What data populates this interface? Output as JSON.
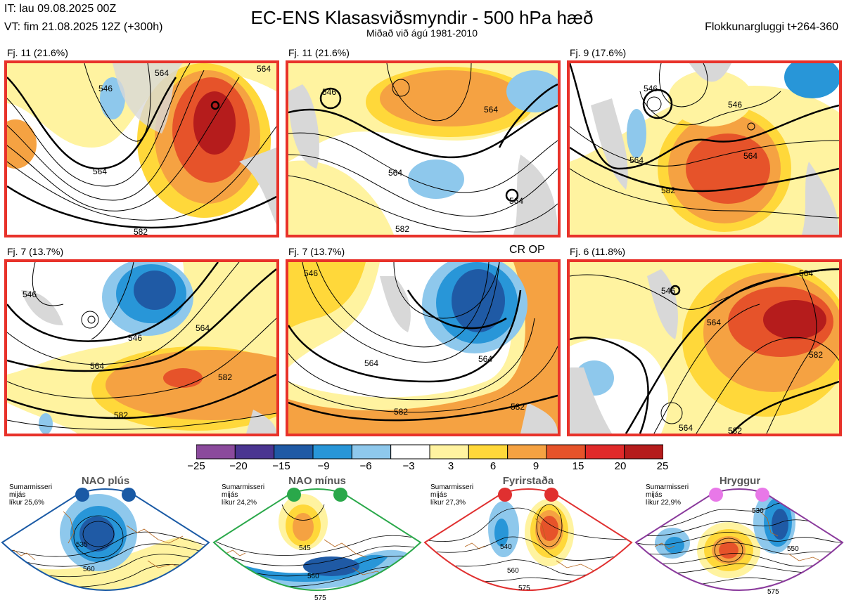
{
  "header": {
    "it": "IT: lau 09.08.2025 00Z",
    "vt": "VT: fim 21.08.2025 12Z  (+300h)",
    "title": "EC-ENS Klasasviðsmyndir - 500 hPa hæð",
    "subtitle": "Miðað við ágú 1981-2010",
    "window": "Flokkunargluggi t+264-360"
  },
  "panels": [
    {
      "label": "Fj. 11 (21.6%)",
      "contours": [
        "546",
        "564",
        "564",
        "564",
        "582"
      ],
      "anomaly": "warm-ridge-east"
    },
    {
      "label": "Fj. 11 (21.6%)",
      "contours": [
        "546",
        "564",
        "564",
        "564",
        "582"
      ],
      "anomaly": "warm-north-cold-south"
    },
    {
      "label": "Fj. 9 (17.6%)",
      "contours": [
        "546",
        "546",
        "564",
        "564",
        "582"
      ],
      "anomaly": "warm-center"
    },
    {
      "label": "Fj. 7 (13.7%)",
      "contours": [
        "546",
        "546",
        "564",
        "564",
        "582",
        "582"
      ],
      "anomaly": "cold-northwest"
    },
    {
      "label": "Fj. 7 (13.7%)",
      "contours": [
        "546",
        "564",
        "564",
        "582",
        "582"
      ],
      "anomaly": "cold-center-north"
    },
    {
      "label": "Fj. 6 (11.8%)",
      "contours": [
        "546",
        "564",
        "564",
        "564",
        "582",
        "582"
      ],
      "anomaly": "warm-east"
    }
  ],
  "operational_marker": "CR OP",
  "colorbar": {
    "ticks": [
      "−25",
      "−20",
      "−15",
      "−9",
      "−6",
      "−3",
      "3",
      "6",
      "9",
      "15",
      "20",
      "25"
    ],
    "colors": [
      "#8b4a9c",
      "#4a3591",
      "#1f5aa5",
      "#2896d8",
      "#8ec8ec",
      "#ffffff",
      "#fff3a0",
      "#ffd83a",
      "#f5a242",
      "#e6532a",
      "#e02a2a",
      "#b51c1c"
    ]
  },
  "regimes": [
    {
      "title": "NAO plús",
      "season": "Sumarmisseri",
      "avg": "mijás",
      "prob": "líkur 25,6%",
      "border": "#1a5aa5",
      "dot": "#1a5aa5",
      "contours": [
        "535",
        "560"
      ]
    },
    {
      "title": "NAO mínus",
      "season": "Sumarmisseri",
      "avg": "mijás",
      "prob": "líkur 24,2%",
      "border": "#2aa84a",
      "dot": "#2aa84a",
      "contours": [
        "545",
        "560",
        "575"
      ]
    },
    {
      "title": "Fyrirstaða",
      "season": "Sumarmisseri",
      "avg": "mijás",
      "prob": "líkur 27,3%",
      "border": "#e03030",
      "dot": "#e03030",
      "contours": [
        "540",
        "560",
        "575"
      ]
    },
    {
      "title": "Hryggur",
      "season": "Sumarmisseri",
      "avg": "mijás",
      "prob": "líkur 22,9%",
      "border": "#8a3a9c",
      "dot": "#e878e8",
      "contours": [
        "530",
        "550",
        "575"
      ]
    }
  ]
}
